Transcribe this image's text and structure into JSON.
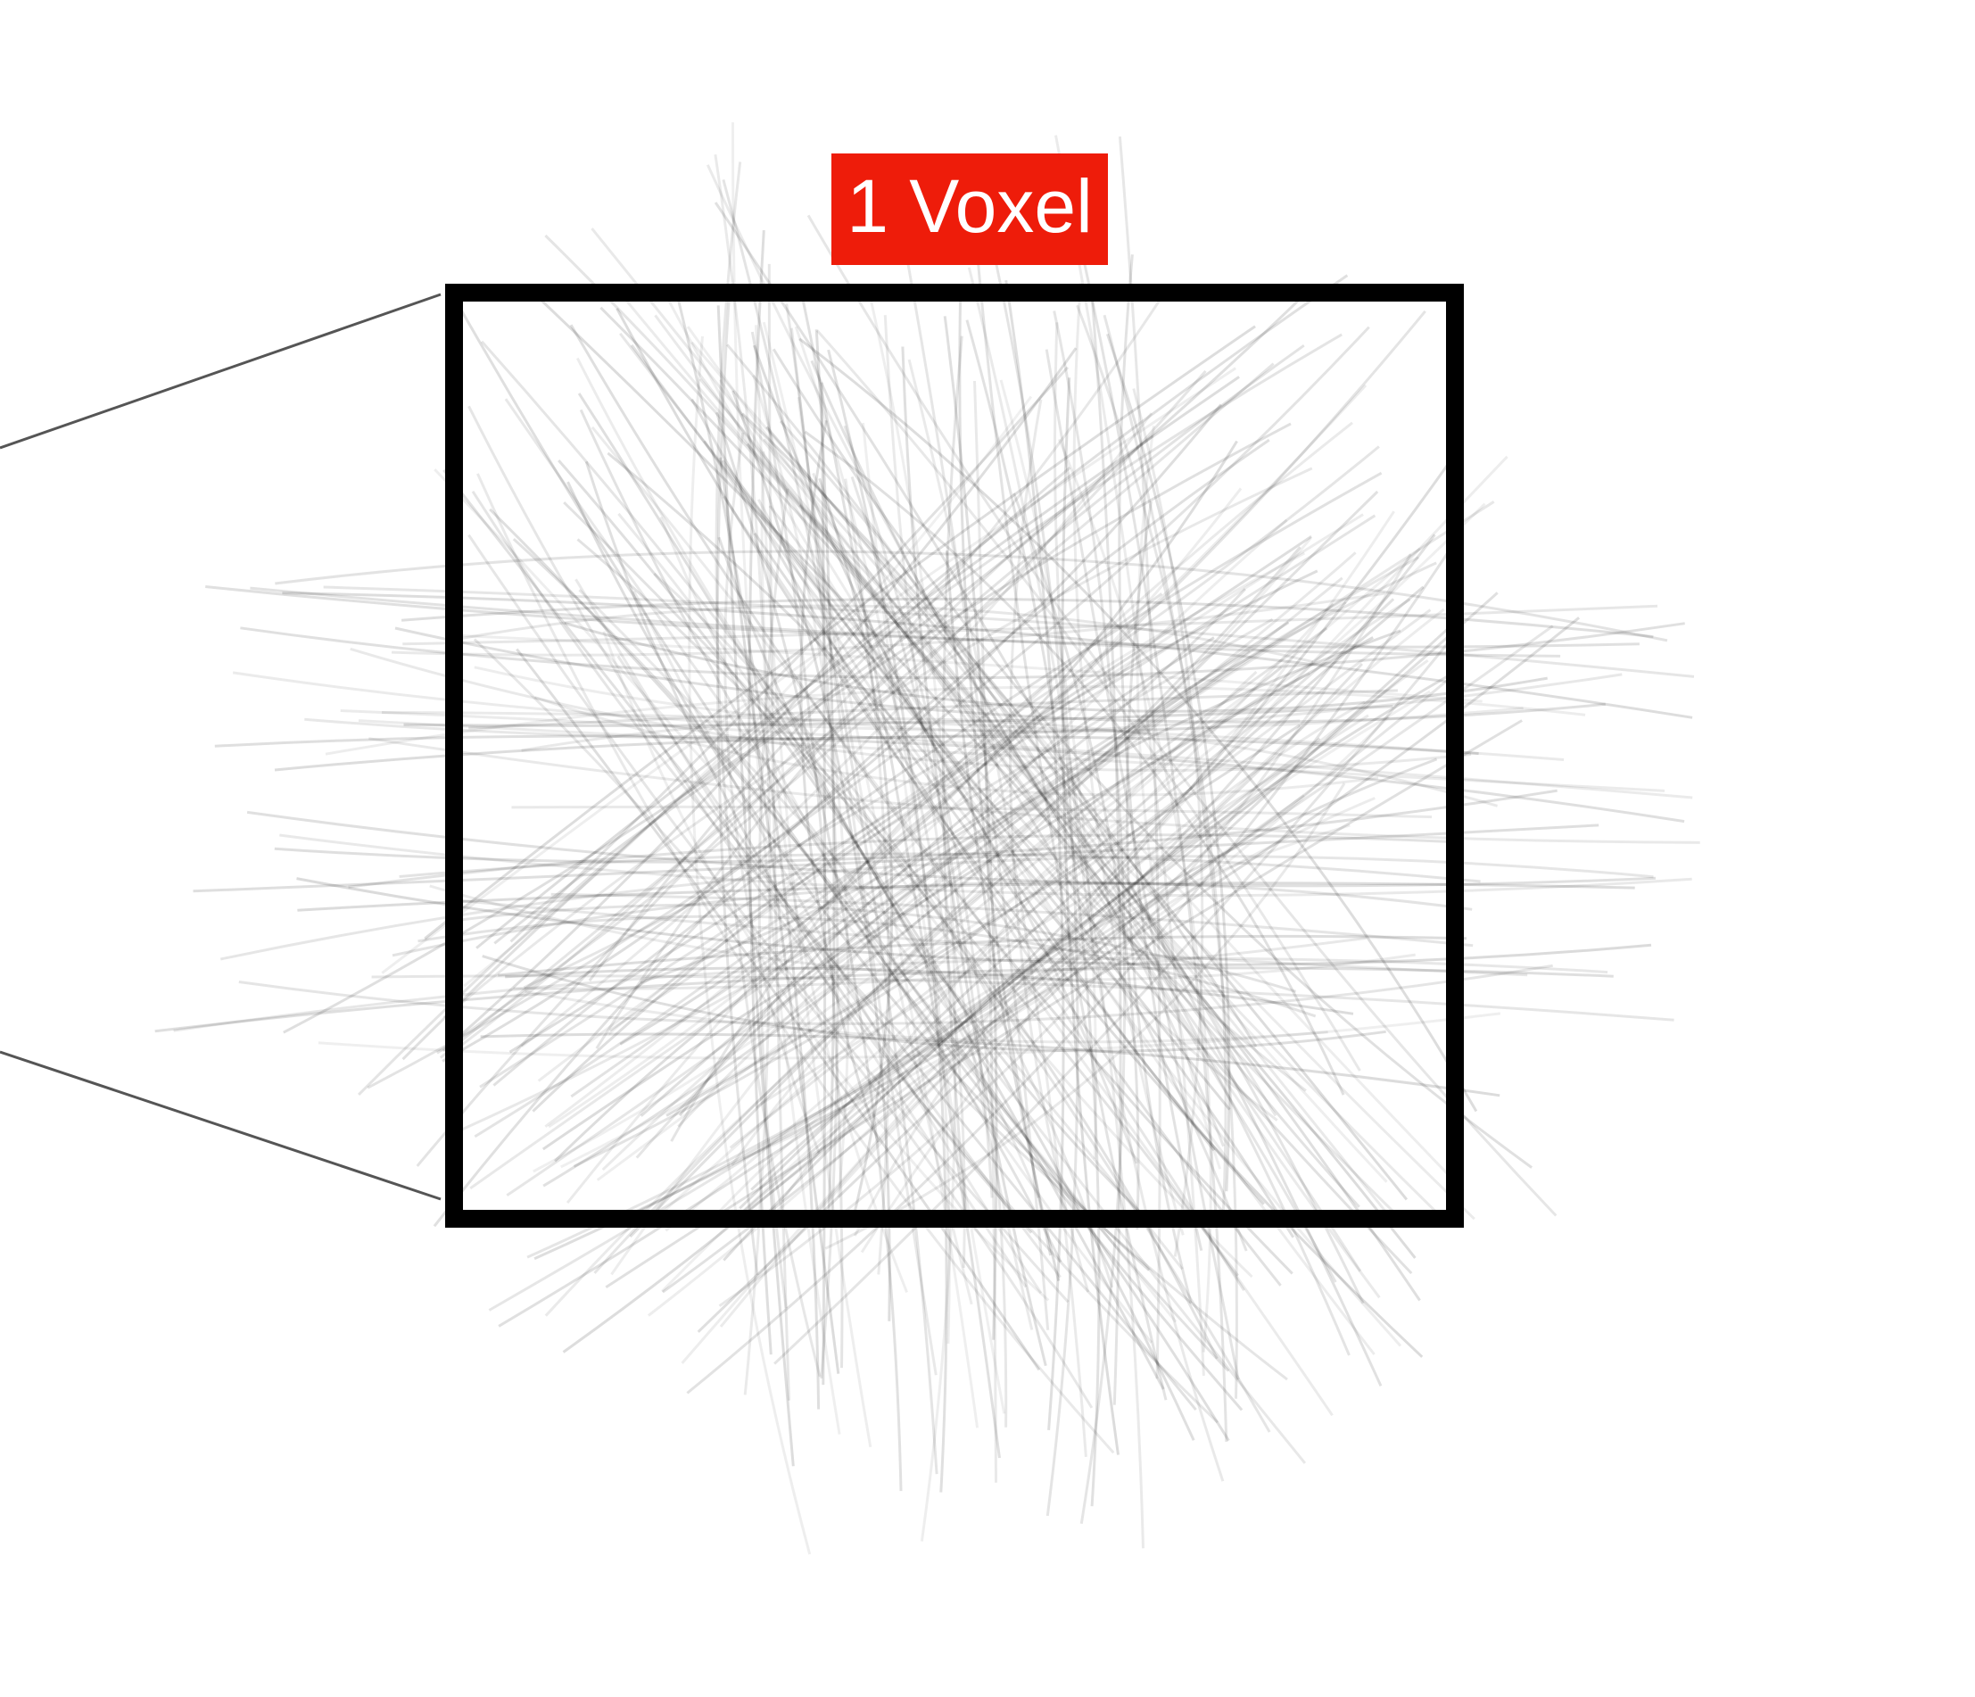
{
  "label": "1 Voxel"
}
